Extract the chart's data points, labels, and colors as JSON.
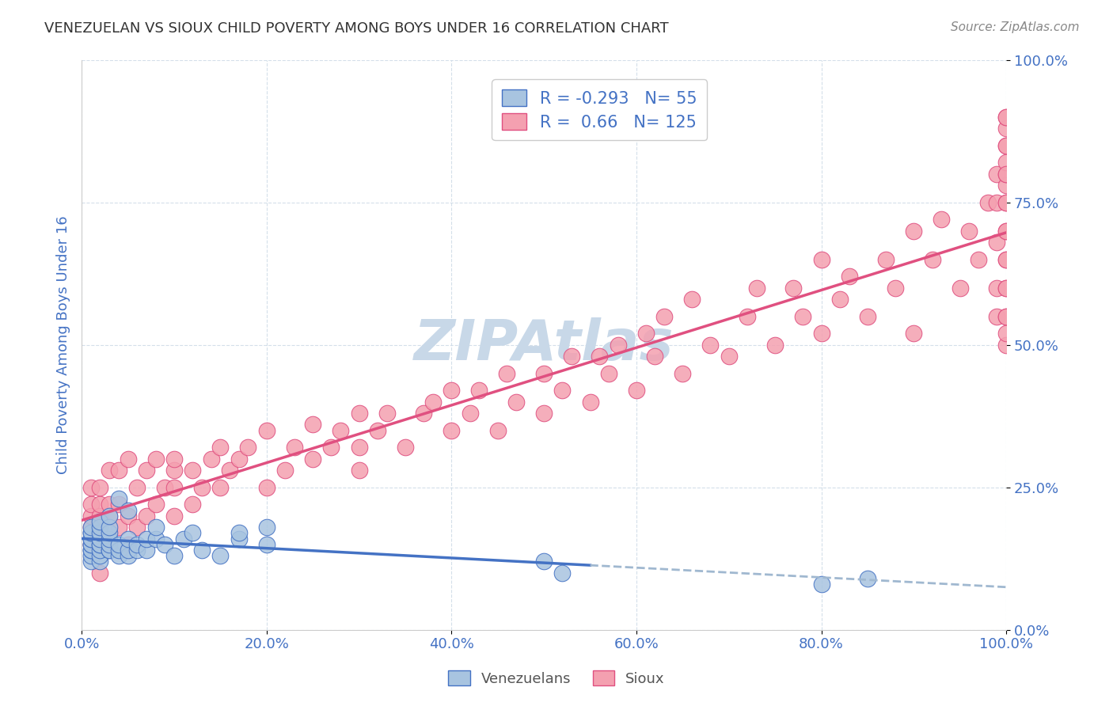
{
  "title": "VENEZUELAN VS SIOUX CHILD POVERTY AMONG BOYS UNDER 16 CORRELATION CHART",
  "source": "Source: ZipAtlas.com",
  "xlabel": "",
  "ylabel": "Child Poverty Among Boys Under 16",
  "legend_venezuelans": "Venezuelans",
  "legend_sioux": "Sioux",
  "r_venezuelan": -0.293,
  "n_venezuelan": 55,
  "r_sioux": 0.66,
  "n_sioux": 125,
  "color_venezuelan": "#a8c4e0",
  "color_sioux": "#f4a0b0",
  "line_color_venezuelan": "#4472c4",
  "line_color_sioux": "#e05080",
  "line_color_dashed": "#a0b8d0",
  "background_color": "#ffffff",
  "grid_color": "#d0dce8",
  "title_color": "#333333",
  "axis_label_color": "#4472c4",
  "legend_r_color": "#4472c4",
  "watermark_color": "#c8d8e8",
  "xlim": [
    0,
    1
  ],
  "ylim": [
    0,
    1
  ],
  "venezuelan_x": [
    0.01,
    0.01,
    0.01,
    0.01,
    0.01,
    0.01,
    0.01,
    0.01,
    0.01,
    0.01,
    0.01,
    0.02,
    0.02,
    0.02,
    0.02,
    0.02,
    0.02,
    0.02,
    0.02,
    0.02,
    0.03,
    0.03,
    0.03,
    0.03,
    0.03,
    0.03,
    0.03,
    0.04,
    0.04,
    0.04,
    0.04,
    0.05,
    0.05,
    0.05,
    0.05,
    0.06,
    0.06,
    0.07,
    0.07,
    0.08,
    0.08,
    0.09,
    0.1,
    0.11,
    0.12,
    0.13,
    0.15,
    0.17,
    0.17,
    0.2,
    0.2,
    0.5,
    0.52,
    0.8,
    0.85
  ],
  "venezuelan_y": [
    0.12,
    0.13,
    0.14,
    0.14,
    0.15,
    0.15,
    0.16,
    0.16,
    0.17,
    0.17,
    0.18,
    0.12,
    0.13,
    0.14,
    0.15,
    0.15,
    0.16,
    0.17,
    0.18,
    0.19,
    0.14,
    0.14,
    0.15,
    0.16,
    0.17,
    0.18,
    0.2,
    0.13,
    0.14,
    0.15,
    0.23,
    0.13,
    0.14,
    0.16,
    0.21,
    0.14,
    0.15,
    0.14,
    0.16,
    0.16,
    0.18,
    0.15,
    0.13,
    0.16,
    0.17,
    0.14,
    0.13,
    0.16,
    0.17,
    0.15,
    0.18,
    0.12,
    0.1,
    0.08,
    0.09
  ],
  "sioux_x": [
    0.01,
    0.01,
    0.01,
    0.01,
    0.01,
    0.02,
    0.02,
    0.02,
    0.02,
    0.02,
    0.03,
    0.03,
    0.03,
    0.03,
    0.04,
    0.04,
    0.04,
    0.05,
    0.05,
    0.05,
    0.06,
    0.06,
    0.07,
    0.07,
    0.08,
    0.08,
    0.09,
    0.1,
    0.1,
    0.1,
    0.1,
    0.12,
    0.12,
    0.13,
    0.14,
    0.15,
    0.15,
    0.16,
    0.17,
    0.18,
    0.2,
    0.2,
    0.22,
    0.23,
    0.25,
    0.25,
    0.27,
    0.28,
    0.3,
    0.3,
    0.3,
    0.32,
    0.33,
    0.35,
    0.37,
    0.38,
    0.4,
    0.4,
    0.42,
    0.43,
    0.45,
    0.46,
    0.47,
    0.5,
    0.5,
    0.52,
    0.53,
    0.55,
    0.56,
    0.57,
    0.58,
    0.6,
    0.61,
    0.62,
    0.63,
    0.65,
    0.66,
    0.68,
    0.7,
    0.72,
    0.73,
    0.75,
    0.77,
    0.78,
    0.8,
    0.8,
    0.82,
    0.83,
    0.85,
    0.87,
    0.88,
    0.9,
    0.9,
    0.92,
    0.93,
    0.95,
    0.96,
    0.97,
    0.98,
    0.99,
    0.99,
    0.99,
    0.99,
    0.99,
    1.0,
    1.0,
    1.0,
    1.0,
    1.0,
    1.0,
    1.0,
    1.0,
    1.0,
    1.0,
    1.0,
    1.0,
    1.0,
    1.0,
    1.0,
    1.0,
    1.0,
    1.0,
    1.0,
    1.0,
    1.0
  ],
  "sioux_y": [
    0.15,
    0.18,
    0.2,
    0.22,
    0.25,
    0.1,
    0.18,
    0.2,
    0.22,
    0.25,
    0.15,
    0.2,
    0.22,
    0.28,
    0.18,
    0.22,
    0.28,
    0.15,
    0.2,
    0.3,
    0.18,
    0.25,
    0.2,
    0.28,
    0.22,
    0.3,
    0.25,
    0.2,
    0.25,
    0.28,
    0.3,
    0.22,
    0.28,
    0.25,
    0.3,
    0.25,
    0.32,
    0.28,
    0.3,
    0.32,
    0.25,
    0.35,
    0.28,
    0.32,
    0.3,
    0.36,
    0.32,
    0.35,
    0.28,
    0.32,
    0.38,
    0.35,
    0.38,
    0.32,
    0.38,
    0.4,
    0.35,
    0.42,
    0.38,
    0.42,
    0.35,
    0.45,
    0.4,
    0.38,
    0.45,
    0.42,
    0.48,
    0.4,
    0.48,
    0.45,
    0.5,
    0.42,
    0.52,
    0.48,
    0.55,
    0.45,
    0.58,
    0.5,
    0.48,
    0.55,
    0.6,
    0.5,
    0.6,
    0.55,
    0.52,
    0.65,
    0.58,
    0.62,
    0.55,
    0.65,
    0.6,
    0.7,
    0.52,
    0.65,
    0.72,
    0.6,
    0.7,
    0.65,
    0.75,
    0.55,
    0.6,
    0.68,
    0.75,
    0.8,
    0.55,
    0.6,
    0.65,
    0.7,
    0.75,
    0.78,
    0.8,
    0.82,
    0.85,
    0.88,
    0.9,
    0.5,
    0.52,
    0.55,
    0.6,
    0.65,
    0.7,
    0.75,
    0.8,
    0.85,
    0.9
  ]
}
